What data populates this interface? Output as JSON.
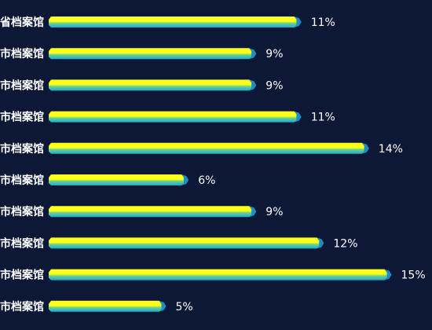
{
  "chart_data": {
    "type": "bar",
    "orientation": "horizontal",
    "categories": [
      "省档案馆",
      "市档案馆",
      "市档案馆",
      "市档案馆",
      "市档案馆",
      "市档案馆",
      "市档案馆",
      "市档案馆",
      "市档案馆",
      "市档案馆"
    ],
    "values": [
      11,
      9,
      9,
      11,
      14,
      6,
      9,
      12,
      15,
      5
    ],
    "value_labels": [
      "11%",
      "9%",
      "9%",
      "11%",
      "14%",
      "6%",
      "9%",
      "12%",
      "15%",
      "5%"
    ],
    "unit": "%",
    "title": "",
    "xlabel": "",
    "ylabel": "",
    "grid": false,
    "legend": "none",
    "colors": {
      "background": "#0d1836",
      "bar_top": "#ffff1a",
      "bar_bottom": "#1aa9d6",
      "bar_cap": "#1a8fc4",
      "label": "#ffffff"
    }
  }
}
